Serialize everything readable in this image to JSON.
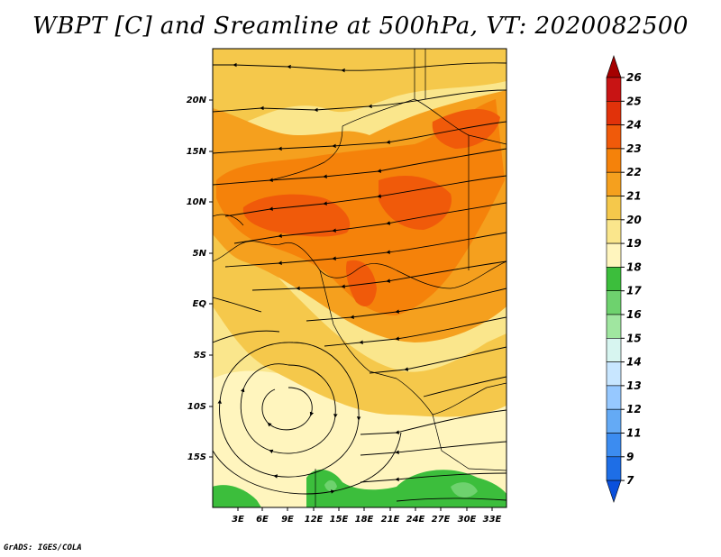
{
  "title": "WBPT [C] and Sreamline at 500hPa, VT: 2020082500",
  "credit": "GrADS: IGES/COLA",
  "map": {
    "variable": "WBPT",
    "units": "C",
    "level": "500hPa",
    "valid_time": "2020082500",
    "lon_labels": [
      "3E",
      "6E",
      "9E",
      "12E",
      "15E",
      "18E",
      "21E",
      "24E",
      "27E",
      "30E",
      "33E"
    ],
    "lat_labels": [
      "20N",
      "15N",
      "10N",
      "5N",
      "EQ",
      "5S",
      "10S",
      "15S"
    ]
  },
  "colorbar": {
    "labels": [
      "26",
      "25",
      "24",
      "23",
      "22",
      "21",
      "20",
      "19",
      "18",
      "17",
      "16",
      "15",
      "14",
      "13",
      "12",
      "11",
      "9",
      "7"
    ],
    "colors": [
      "#a50000",
      "#c81414",
      "#e1320a",
      "#f05a0a",
      "#f5820a",
      "#f5a01e",
      "#f5c84b",
      "#fae68c",
      "#fff5be",
      "#3cbe3c",
      "#6ed26e",
      "#a0e6a0",
      "#d7f5f0",
      "#c8e6ff",
      "#96c8ff",
      "#64aaf5",
      "#3c8cf0",
      "#1e6ee6",
      "#0a50dc"
    ]
  }
}
